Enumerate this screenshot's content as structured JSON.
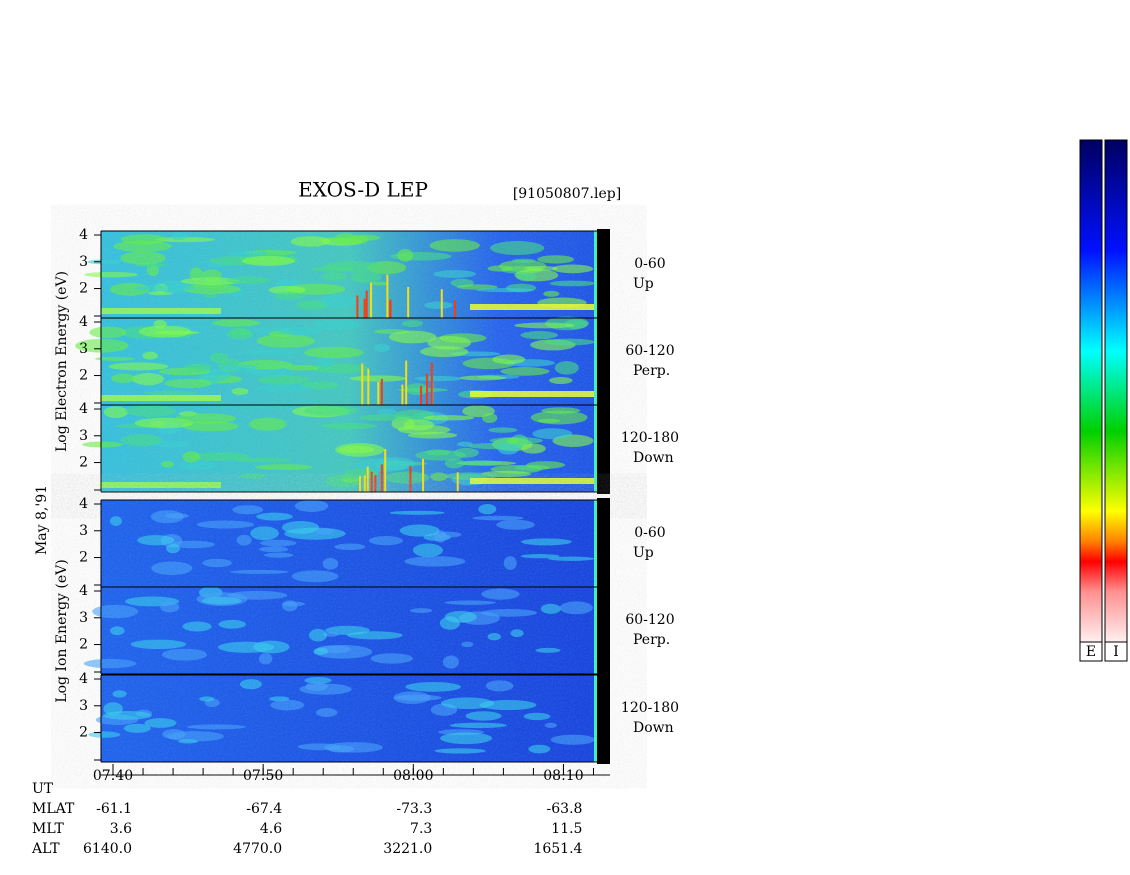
{
  "title": "EXOS-D LEP",
  "file": "[91050807.lep]",
  "date": "May  8,'91",
  "energy_axis": {
    "ylim": [
      0.9,
      4.15
    ],
    "yticks": [
      2,
      3,
      4
    ]
  },
  "time_axis": {
    "xlim": [
      459.2,
      493.1
    ],
    "xticks": [
      {
        "value": 460,
        "label": "07:40"
      },
      {
        "value": 470,
        "label": "07:50"
      },
      {
        "value": 480,
        "label": "08:00"
      },
      {
        "value": 490,
        "label": "08:10"
      }
    ]
  },
  "species": [
    {
      "label": "Log Electron Energy (eV)",
      "panels": [
        {
          "pitch": "0-60",
          "direction": "Up"
        },
        {
          "pitch": "60-120",
          "direction": "Perp."
        },
        {
          "pitch": "120-180",
          "direction": "Down"
        }
      ]
    },
    {
      "label": "Log Ion Energy (eV)",
      "panels": [
        {
          "pitch": "0-60",
          "direction": "Up"
        },
        {
          "pitch": "60-120",
          "direction": "Perp."
        },
        {
          "pitch": "120-180",
          "direction": "Down"
        }
      ]
    }
  ],
  "ephemeris": {
    "time_label": "UT",
    "rows": [
      {
        "name": "MLAT",
        "values": [
          "-61.1",
          "-67.4",
          "-73.3",
          "-63.8"
        ]
      },
      {
        "name": "MLT",
        "values": [
          "3.6",
          "4.6",
          "7.3",
          "11.5"
        ]
      },
      {
        "name": "ALT",
        "values": [
          "6140.0",
          "4770.0",
          "3221.0",
          "1651.4"
        ]
      }
    ]
  },
  "colorbars": [
    "E",
    "I"
  ]
}
